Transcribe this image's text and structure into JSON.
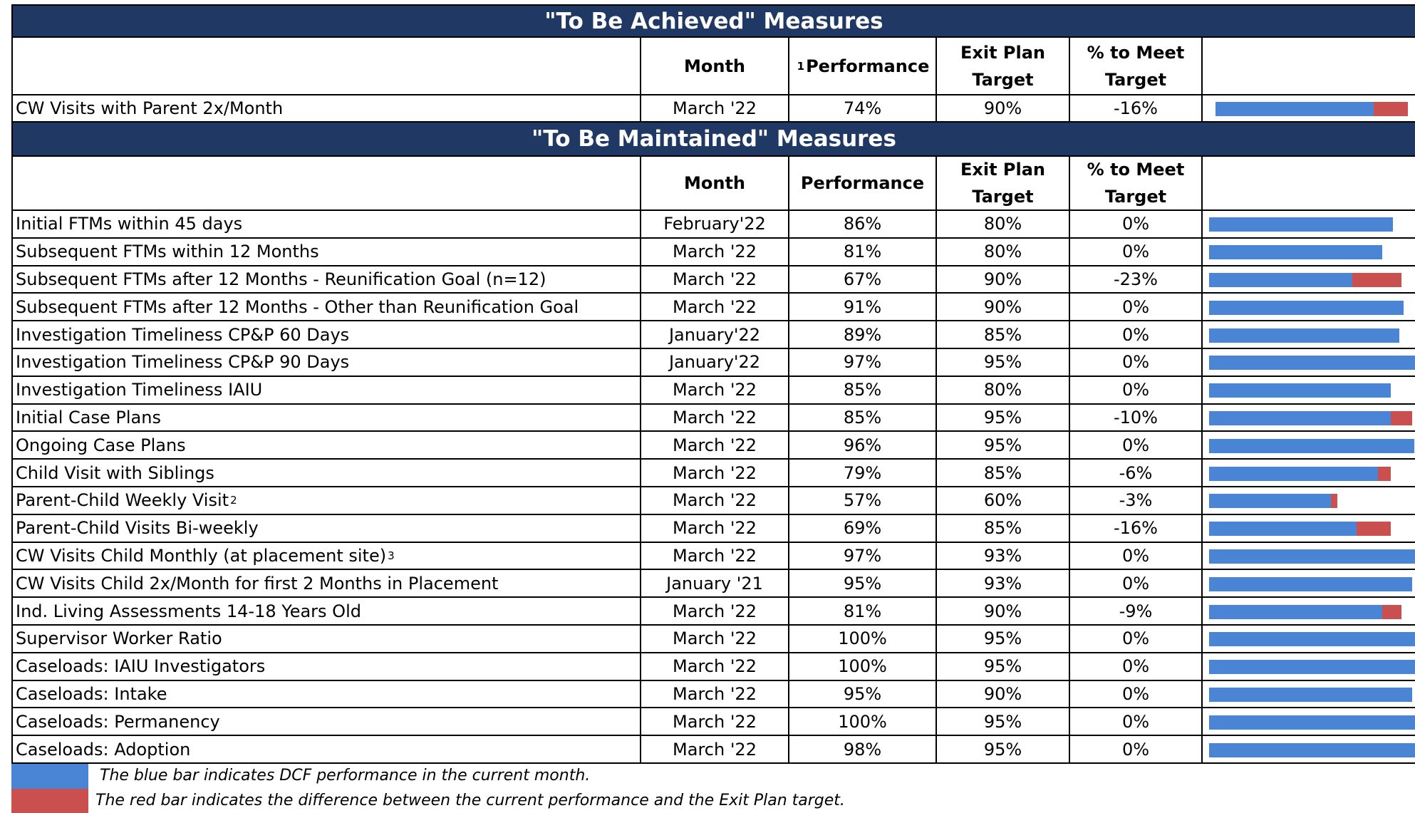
{
  "sections": [
    {
      "title": "\"To Be Achieved\" Measures",
      "headers": {
        "month": "Month",
        "performance_note": "1",
        "performance": "Performance",
        "target": "Exit Plan Target",
        "gap": "% to Meet Target"
      },
      "rows": [
        {
          "measure": "CW Visits with Parent 2x/Month",
          "month": "March '22",
          "performance": 74,
          "performance_label": "74%",
          "target": 90,
          "target_label": "90%",
          "gap": -16,
          "gap_label": "-16%"
        }
      ]
    },
    {
      "title": "\"To Be Maintained\" Measures",
      "headers": {
        "month": "Month",
        "performance": "Performance",
        "target": "Exit Plan Target",
        "gap": "% to Meet Target"
      },
      "rows": [
        {
          "measure": "Initial FTMs within 45 days",
          "month": "February'22",
          "performance": 86,
          "performance_label": "86%",
          "target": 80,
          "target_label": "80%",
          "gap": 0,
          "gap_label": "0%"
        },
        {
          "measure": "Subsequent FTMs within 12 Months",
          "month": "March '22",
          "performance": 81,
          "performance_label": "81%",
          "target": 80,
          "target_label": "80%",
          "gap": 0,
          "gap_label": "0%"
        },
        {
          "measure": "Subsequent FTMs after 12 Months - Reunification Goal (n=12)",
          "month": "March '22",
          "performance": 67,
          "performance_label": "67%",
          "target": 90,
          "target_label": "90%",
          "gap": -23,
          "gap_label": "-23%"
        },
        {
          "measure": "Subsequent FTMs after 12 Months - Other than Reunification Goal",
          "month": "March '22",
          "performance": 91,
          "performance_label": "91%",
          "target": 90,
          "target_label": "90%",
          "gap": 0,
          "gap_label": "0%"
        },
        {
          "measure": "Investigation Timeliness CP&P 60 Days",
          "month": "January'22",
          "performance": 89,
          "performance_label": "89%",
          "target": 85,
          "target_label": "85%",
          "gap": 0,
          "gap_label": "0%"
        },
        {
          "measure": "Investigation Timeliness CP&P 90 Days",
          "month": "January'22",
          "performance": 97,
          "performance_label": "97%",
          "target": 95,
          "target_label": "95%",
          "gap": 0,
          "gap_label": "0%"
        },
        {
          "measure": "Investigation Timeliness IAIU",
          "month": "March '22",
          "performance": 85,
          "performance_label": "85%",
          "target": 80,
          "target_label": "80%",
          "gap": 0,
          "gap_label": "0%"
        },
        {
          "measure": "Initial Case Plans",
          "month": "March '22",
          "performance": 85,
          "performance_label": "85%",
          "target": 95,
          "target_label": "95%",
          "gap": -10,
          "gap_label": "-10%"
        },
        {
          "measure": "Ongoing Case Plans",
          "month": "March '22",
          "performance": 96,
          "performance_label": "96%",
          "target": 95,
          "target_label": "95%",
          "gap": 0,
          "gap_label": "0%"
        },
        {
          "measure": "Child Visit with Siblings",
          "month": "March '22",
          "performance": 79,
          "performance_label": "79%",
          "target": 85,
          "target_label": "85%",
          "gap": -6,
          "gap_label": "-6%"
        },
        {
          "measure": "Parent-Child Weekly Visit",
          "note": "2",
          "month": "March '22",
          "performance": 57,
          "performance_label": "57%",
          "target": 60,
          "target_label": "60%",
          "gap": -3,
          "gap_label": "-3%"
        },
        {
          "measure": "Parent-Child Visits Bi-weekly",
          "month": "March '22",
          "performance": 69,
          "performance_label": "69%",
          "target": 85,
          "target_label": "85%",
          "gap": -16,
          "gap_label": "-16%"
        },
        {
          "measure": "CW Visits Child Monthly (at placement site)",
          "note": "3",
          "month": "March '22",
          "performance": 97,
          "performance_label": "97%",
          "target": 93,
          "target_label": "93%",
          "gap": 0,
          "gap_label": "0%"
        },
        {
          "measure": "CW Visits Child 2x/Month  for first 2 Months in Placement",
          "month": "January '21",
          "performance": 95,
          "performance_label": "95%",
          "target": 93,
          "target_label": "93%",
          "gap": 0,
          "gap_label": "0%"
        },
        {
          "measure": "Ind. Living Assessments 14-18 Years Old",
          "month": "March '22",
          "performance": 81,
          "performance_label": "81%",
          "target": 90,
          "target_label": "90%",
          "gap": -9,
          "gap_label": "-9%"
        },
        {
          "measure": "Supervisor Worker Ratio",
          "month": "March '22",
          "performance": 100,
          "performance_label": "100%",
          "target": 95,
          "target_label": "95%",
          "gap": 0,
          "gap_label": "0%"
        },
        {
          "measure": "Caseloads: IAIU Investigators",
          "month": "March '22",
          "performance": 100,
          "performance_label": "100%",
          "target": 95,
          "target_label": "95%",
          "gap": 0,
          "gap_label": "0%"
        },
        {
          "measure": "Caseloads: Intake",
          "month": "March '22",
          "performance": 95,
          "performance_label": "95%",
          "target": 90,
          "target_label": "90%",
          "gap": 0,
          "gap_label": "0%"
        },
        {
          "measure": "Caseloads: Permanency",
          "month": "March '22",
          "performance": 100,
          "performance_label": "100%",
          "target": 95,
          "target_label": "95%",
          "gap": 0,
          "gap_label": "0%"
        },
        {
          "measure": "Caseloads: Adoption",
          "month": "March '22",
          "performance": 98,
          "performance_label": "98%",
          "target": 95,
          "target_label": "95%",
          "gap": 0,
          "gap_label": "0%"
        }
      ]
    }
  ],
  "legend": [
    {
      "color": "#4a84d4",
      "text": "The blue bar indicates DCF performance in the current month."
    },
    {
      "color": "#c9504e",
      "text": "The red bar indicates the difference between the current performance and the Exit Plan target."
    }
  ]
}
